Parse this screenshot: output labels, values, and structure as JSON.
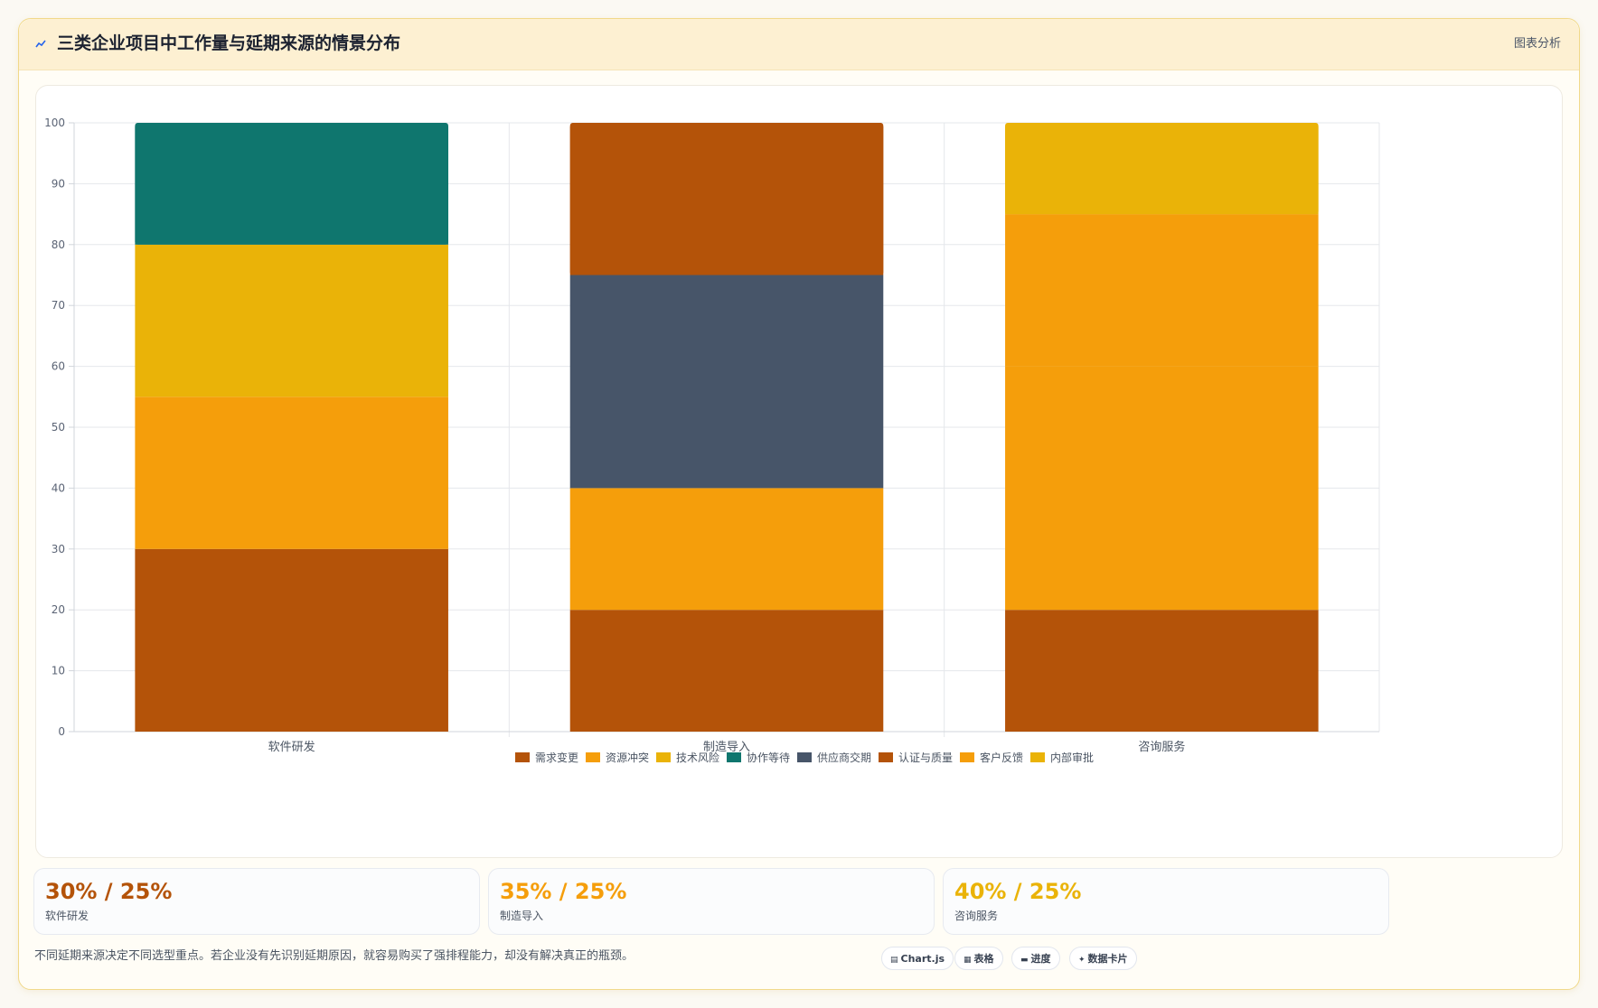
{
  "header": {
    "title": "三类企业项目中工作量与延期来源的情景分布",
    "right_link": "图表分析",
    "icon": "chart-line-icon",
    "icon_color": "#2563eb"
  },
  "chart_data": {
    "type": "bar",
    "stacked": true,
    "categories": [
      "软件研发",
      "制造导入",
      "咨询服务"
    ],
    "ylim": [
      0,
      100
    ],
    "yticks": [
      0,
      10,
      20,
      30,
      40,
      50,
      60,
      70,
      80,
      90,
      100
    ],
    "grid": true,
    "legend_position": "bottom",
    "series": [
      {
        "name": "需求变更",
        "color": "#b45309",
        "values": [
          30,
          20,
          20
        ]
      },
      {
        "name": "资源冲突",
        "color": "#f59e0b",
        "values": [
          25,
          20,
          40
        ]
      },
      {
        "name": "技术风险",
        "color": "#eab308",
        "values": [
          25,
          0,
          0
        ]
      },
      {
        "name": "协作等待",
        "color": "#0f766e",
        "values": [
          20,
          0,
          0
        ]
      },
      {
        "name": "供应商交期",
        "color": "#475569",
        "values": [
          0,
          35,
          0
        ]
      },
      {
        "name": "认证与质量",
        "color": "#b45309",
        "values": [
          0,
          25,
          0
        ]
      },
      {
        "name": "客户反馈",
        "color": "#f59e0b",
        "values": [
          0,
          0,
          25
        ]
      },
      {
        "name": "内部审批",
        "color": "#eab308",
        "values": [
          0,
          0,
          15
        ]
      }
    ]
  },
  "stats": [
    {
      "value": "30% / 25%",
      "label": "软件研发",
      "color": "#b45309"
    },
    {
      "value": "35% / 25%",
      "label": "制造导入",
      "color": "#f59e0b"
    },
    {
      "value": "40% / 25%",
      "label": "咨询服务",
      "color": "#eab308"
    }
  ],
  "footer": {
    "note": "不同延期来源决定不同选型重点。若企业没有先识别延期原因，就容易购买了强排程能力，却没有解决真正的瓶颈。",
    "pills": [
      {
        "icon": "chart-icon",
        "label": "Chart.js"
      },
      {
        "icon": "table-icon",
        "label": "表格"
      },
      {
        "icon": "progress-icon",
        "label": "进度"
      },
      {
        "icon": "sparkle-icon",
        "label": "数据卡片"
      }
    ]
  }
}
